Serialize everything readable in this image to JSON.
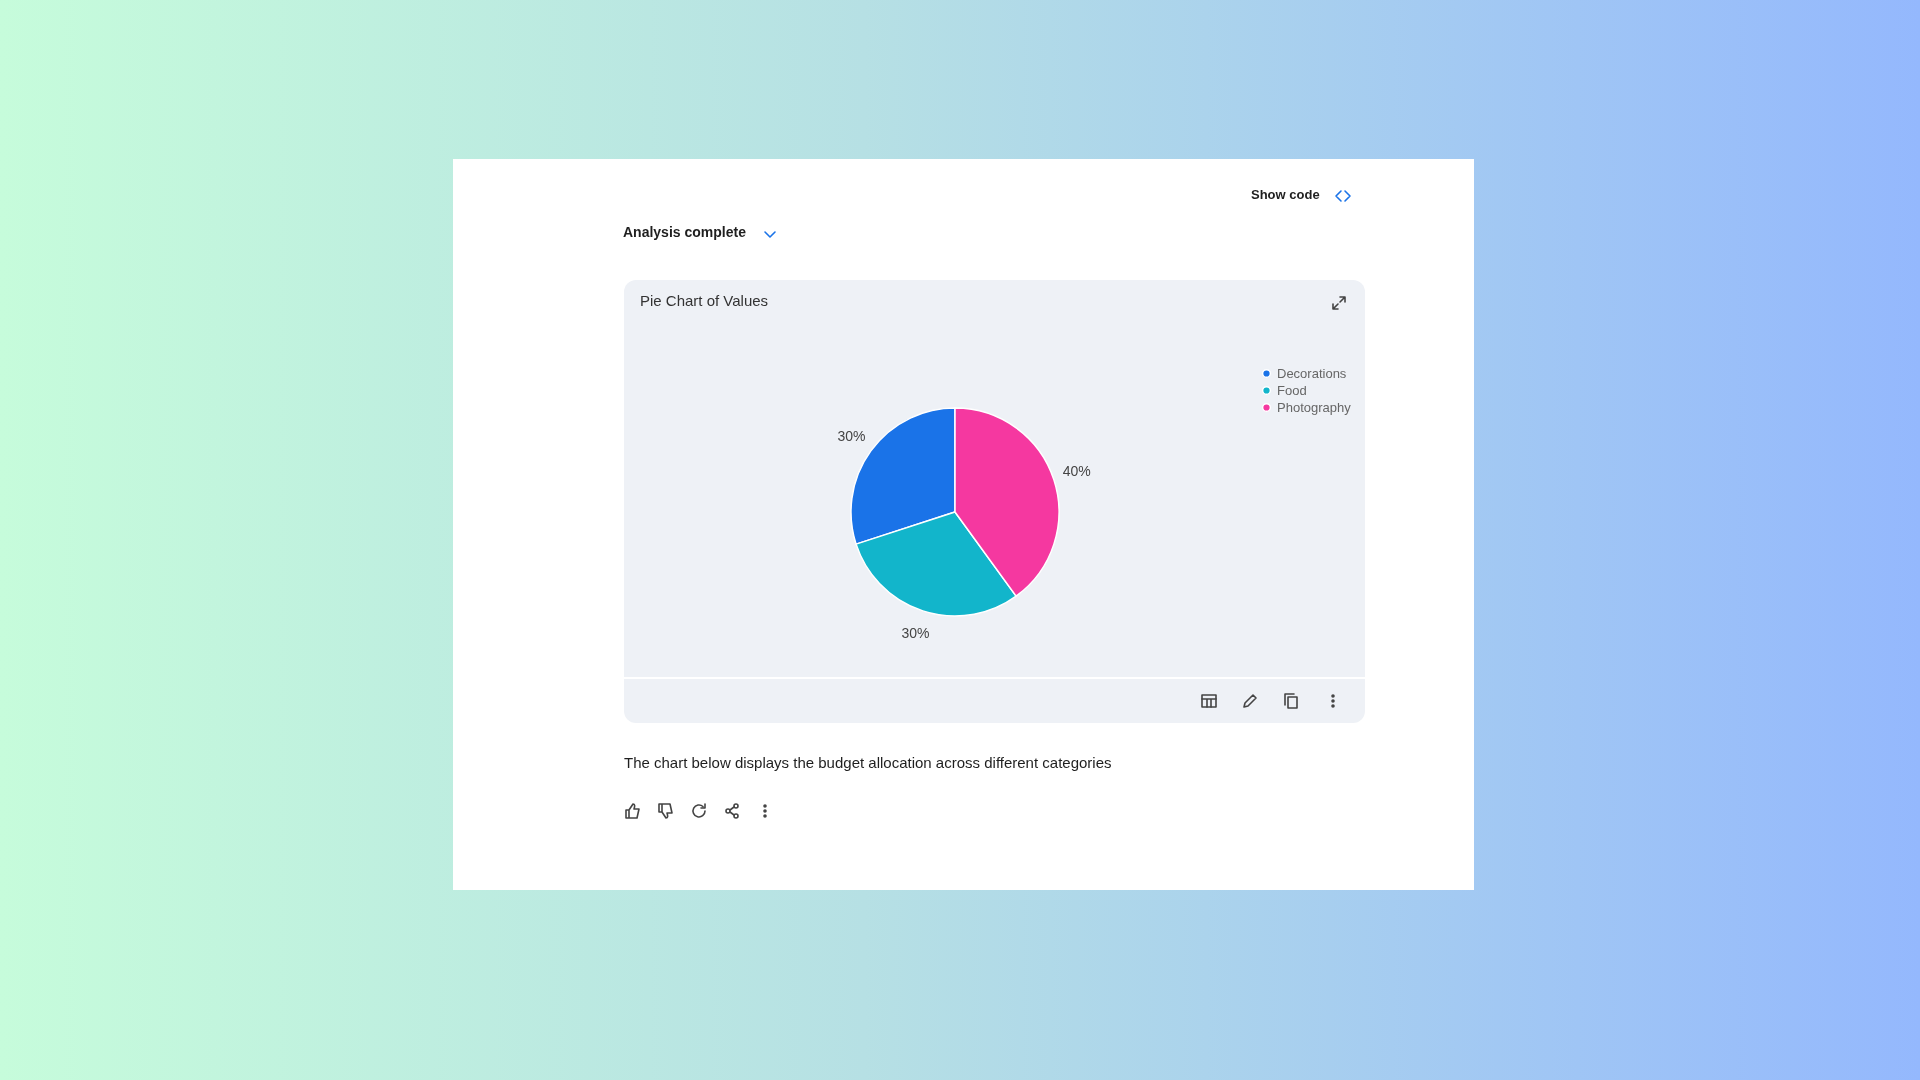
{
  "chart_data": {
    "type": "pie",
    "title": "Pie Chart of Values",
    "categories": [
      "Decorations",
      "Food",
      "Photography"
    ],
    "values": [
      30,
      30,
      40
    ],
    "colors": [
      "#1a73e8",
      "#12b5cb",
      "#f538a0"
    ],
    "value_labels": [
      "30%",
      "30%",
      "40%"
    ],
    "legend": "top right",
    "annotations": [
      "Analysis complete",
      "Show code",
      "The chart below displays the budget allocation across different categories"
    ]
  }
}
